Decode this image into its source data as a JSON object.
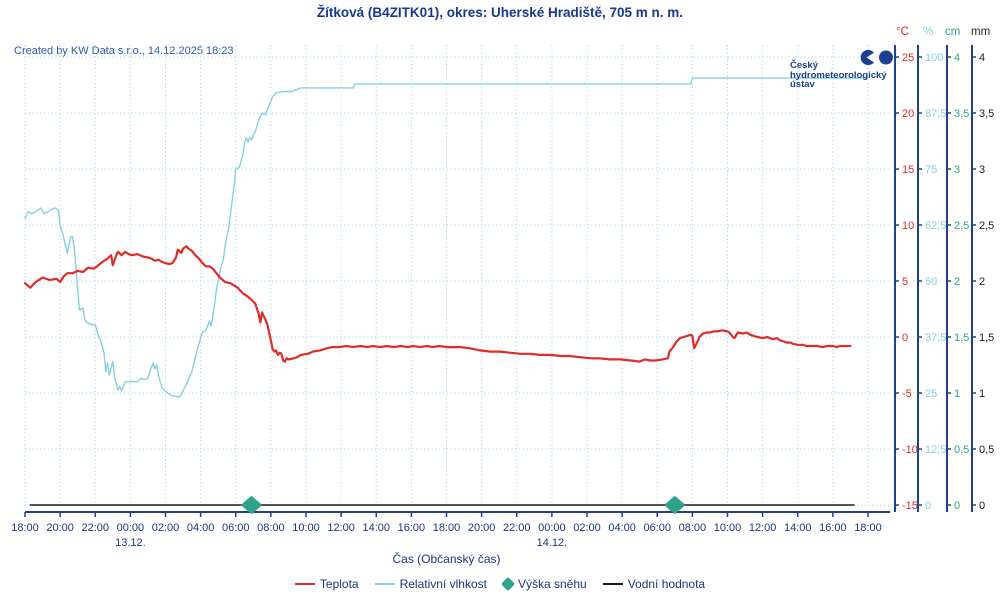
{
  "header": {
    "title": "Žítková (B4ZITK01), okres: Uherské Hradiště, 705 m n. m.",
    "created_by": "Created by KW Data s.r.o., 14.12.2025 18:23"
  },
  "logo": {
    "line1": "Český",
    "line2": "hydrometeorologický",
    "line3": "ústav"
  },
  "colors": {
    "text_navy": "#17387e",
    "axis_line": "#1d4289",
    "grid": "#9ed9ea",
    "created_by": "#2e5ba8"
  },
  "chart_data": {
    "type": "line",
    "title": "Žítková (B4ZITK01), okres: Uherské Hradiště, 705 m n. m.",
    "grid": true,
    "legend_position": "bottom",
    "x_axis": {
      "label": "Čas (Občanský čas)",
      "unit": "hours from 12.12. 18:00",
      "range_hours": [
        0,
        48
      ],
      "tick_interval_hours": 2,
      "tick_labels": [
        "18:00",
        "20:00",
        "22:00",
        "00:00",
        "02:00",
        "04:00",
        "06:00",
        "08:00",
        "10:00",
        "12:00",
        "14:00",
        "16:00",
        "18:00",
        "20:00",
        "22:00",
        "00:00",
        "02:00",
        "04:00",
        "06:00",
        "08:00",
        "10:00",
        "12:00",
        "14:00",
        "16:00",
        "18:00"
      ],
      "date_labels": [
        {
          "label": "13.12.",
          "hour": 6
        },
        {
          "label": "14.12.",
          "hour": 30
        }
      ]
    },
    "y_axes": [
      {
        "unit": "°C",
        "color": "#e02b28",
        "min": -15,
        "max": 25,
        "ticks": [
          "25",
          "20",
          "15",
          "10",
          "5",
          "0",
          "-5",
          "-10",
          "-15"
        ]
      },
      {
        "unit": "%",
        "color": "#87cfe0",
        "min": 0,
        "max": 100,
        "ticks": [
          "100",
          "87,5",
          "75",
          "62,5",
          "50",
          "37,5",
          "25",
          "12,5",
          "0"
        ]
      },
      {
        "unit": "cm",
        "color": "#30a28c",
        "min": 0,
        "max": 4,
        "ticks": [
          "4",
          "3,5",
          "3",
          "2,5",
          "2",
          "1,5",
          "1",
          "0,5",
          "0"
        ]
      },
      {
        "unit": "mm",
        "color": "#1c1c1c",
        "min": 0,
        "max": 4,
        "ticks": [
          "4",
          "3,5",
          "3",
          "2,5",
          "2",
          "1,5",
          "1",
          "0,5",
          "0"
        ]
      }
    ],
    "series": [
      {
        "name": "Teplota",
        "render": "line",
        "axis": 0,
        "color": "#e02b28",
        "width": 2.2,
        "points": [
          [
            0,
            4.8
          ],
          [
            0.3,
            4.4
          ],
          [
            0.6,
            4.9
          ],
          [
            1,
            5.3
          ],
          [
            1.4,
            5.1
          ],
          [
            1.8,
            5.2
          ],
          [
            2,
            4.9
          ],
          [
            2.2,
            5.4
          ],
          [
            2.4,
            5.7
          ],
          [
            2.7,
            5.7
          ],
          [
            3,
            5.9
          ],
          [
            3.3,
            5.8
          ],
          [
            3.6,
            6.2
          ],
          [
            3.9,
            6.1
          ],
          [
            4.1,
            6.3
          ],
          [
            4.4,
            6.7
          ],
          [
            4.7,
            7
          ],
          [
            4.9,
            7.3
          ],
          [
            5,
            6.4
          ],
          [
            5.2,
            7.3
          ],
          [
            5.3,
            7.6
          ],
          [
            5.5,
            7.3
          ],
          [
            5.7,
            7.6
          ],
          [
            5.9,
            7.4
          ],
          [
            6.1,
            7.3
          ],
          [
            6.4,
            7.4
          ],
          [
            6.7,
            7.2
          ],
          [
            7,
            7.1
          ],
          [
            7.2,
            7
          ],
          [
            7.4,
            6.8
          ],
          [
            7.6,
            6.9
          ],
          [
            7.8,
            6.7
          ],
          [
            8,
            6.6
          ],
          [
            8.2,
            6.5
          ],
          [
            8.4,
            6.6
          ],
          [
            8.6,
            7.1
          ],
          [
            8.7,
            7.8
          ],
          [
            8.9,
            7.5
          ],
          [
            9,
            7.9
          ],
          [
            9.2,
            8.1
          ],
          [
            9.3,
            7.9
          ],
          [
            9.5,
            7.7
          ],
          [
            9.7,
            7.3
          ],
          [
            9.9,
            7
          ],
          [
            10.1,
            6.6
          ],
          [
            10.3,
            6.3
          ],
          [
            10.5,
            6.3
          ],
          [
            10.7,
            6.1
          ],
          [
            10.9,
            5.7
          ],
          [
            11.1,
            5.3
          ],
          [
            11.4,
            4.9
          ],
          [
            11.7,
            4.8
          ],
          [
            12.1,
            4.4
          ],
          [
            12.4,
            3.9
          ],
          [
            12.7,
            3.6
          ],
          [
            12.9,
            3.3
          ],
          [
            13.1,
            3
          ],
          [
            13.3,
            2.1
          ],
          [
            13.4,
            1.3
          ],
          [
            13.5,
            2.2
          ],
          [
            13.7,
            1.5
          ],
          [
            13.8,
            1.1
          ],
          [
            13.9,
            0.4
          ],
          [
            14,
            -0.3
          ],
          [
            14.1,
            -1.1
          ],
          [
            14.2,
            -1.3
          ],
          [
            14.3,
            -1.2
          ],
          [
            14.4,
            -1.6
          ],
          [
            14.5,
            -1.4
          ],
          [
            14.6,
            -1.5
          ],
          [
            14.7,
            -2.1
          ],
          [
            14.8,
            -2.2
          ],
          [
            14.9,
            -1.9
          ],
          [
            15,
            -2
          ],
          [
            15.3,
            -1.9
          ],
          [
            15.5,
            -1.8
          ],
          [
            15.7,
            -1.6
          ],
          [
            16.1,
            -1.5
          ],
          [
            16.4,
            -1.3
          ],
          [
            16.8,
            -1.2
          ],
          [
            17.2,
            -1
          ],
          [
            17.5,
            -0.9
          ],
          [
            17.9,
            -0.9
          ],
          [
            18.3,
            -0.8
          ],
          [
            18.7,
            -0.9
          ],
          [
            19.1,
            -0.8
          ],
          [
            19.5,
            -0.9
          ],
          [
            19.8,
            -0.8
          ],
          [
            20.2,
            -0.9
          ],
          [
            20.6,
            -0.8
          ],
          [
            21,
            -0.9
          ],
          [
            21.4,
            -0.8
          ],
          [
            21.8,
            -0.9
          ],
          [
            22.1,
            -0.8
          ],
          [
            22.5,
            -0.9
          ],
          [
            22.9,
            -0.8
          ],
          [
            23.2,
            -0.9
          ],
          [
            23.6,
            -0.8
          ],
          [
            24,
            -0.9
          ],
          [
            24.8,
            -0.9
          ],
          [
            25.3,
            -1
          ],
          [
            25.9,
            -1.2
          ],
          [
            26.5,
            -1.3
          ],
          [
            27.1,
            -1.3
          ],
          [
            27.6,
            -1.4
          ],
          [
            28.2,
            -1.5
          ],
          [
            28.8,
            -1.5
          ],
          [
            29.3,
            -1.6
          ],
          [
            29.9,
            -1.6
          ],
          [
            30.5,
            -1.7
          ],
          [
            31,
            -1.7
          ],
          [
            31.6,
            -1.8
          ],
          [
            32.2,
            -1.9
          ],
          [
            32.7,
            -1.9
          ],
          [
            33.3,
            -2
          ],
          [
            33.9,
            -2
          ],
          [
            34.5,
            -2.1
          ],
          [
            35,
            -2.2
          ],
          [
            35.3,
            -2
          ],
          [
            35.6,
            -2.1
          ],
          [
            35.9,
            -2.1
          ],
          [
            36.3,
            -2
          ],
          [
            36.6,
            -1.9
          ],
          [
            36.7,
            -1.3
          ],
          [
            36.9,
            -0.9
          ],
          [
            37.1,
            -0.4
          ],
          [
            37.3,
            -0.1
          ],
          [
            37.5,
            0
          ],
          [
            37.7,
            0.1
          ],
          [
            37.9,
            0.2
          ],
          [
            38,
            0.1
          ],
          [
            38.1,
            -1
          ],
          [
            38.3,
            -0.4
          ],
          [
            38.4,
            0
          ],
          [
            38.6,
            0.3
          ],
          [
            38.8,
            0.4
          ],
          [
            39,
            0.4
          ],
          [
            39.2,
            0.5
          ],
          [
            39.4,
            0.5
          ],
          [
            39.7,
            0.6
          ],
          [
            40,
            0.5
          ],
          [
            40.1,
            0.4
          ],
          [
            40.3,
            0
          ],
          [
            40.4,
            -0.1
          ],
          [
            40.5,
            0.2
          ],
          [
            40.6,
            0.4
          ],
          [
            40.9,
            0.3
          ],
          [
            41.1,
            0.4
          ],
          [
            41.3,
            0.2
          ],
          [
            41.5,
            0.1
          ],
          [
            41.7,
            0
          ],
          [
            42,
            -0.1
          ],
          [
            42.3,
            0
          ],
          [
            42.4,
            -0.1
          ],
          [
            42.6,
            -0.2
          ],
          [
            42.8,
            -0.1
          ],
          [
            43,
            -0.3
          ],
          [
            43.2,
            -0.4
          ],
          [
            43.4,
            -0.5
          ],
          [
            43.6,
            -0.5
          ],
          [
            43.7,
            -0.6
          ],
          [
            44,
            -0.7
          ],
          [
            44.3,
            -0.7
          ],
          [
            44.5,
            -0.8
          ],
          [
            44.7,
            -0.8
          ],
          [
            45.1,
            -0.8
          ],
          [
            45.4,
            -0.9
          ],
          [
            45.7,
            -0.8
          ],
          [
            46,
            -0.8
          ],
          [
            46.2,
            -0.9
          ],
          [
            46.4,
            -0.8
          ],
          [
            46.7,
            -0.8
          ],
          [
            47,
            -0.8
          ]
        ]
      },
      {
        "name": "Relativní vlhkost",
        "render": "line",
        "axis": 1,
        "color": "#87cfe0",
        "width": 1.4,
        "points": [
          [
            0,
            64
          ],
          [
            0.2,
            65.5
          ],
          [
            0.4,
            65
          ],
          [
            0.6,
            65.4
          ],
          [
            0.9,
            66.3
          ],
          [
            1.1,
            65
          ],
          [
            1.3,
            65.4
          ],
          [
            1.5,
            66
          ],
          [
            1.7,
            66.3
          ],
          [
            1.9,
            65.8
          ],
          [
            2,
            62.5
          ],
          [
            2.2,
            59.8
          ],
          [
            2.4,
            56.2
          ],
          [
            2.6,
            59.8
          ],
          [
            2.7,
            60
          ],
          [
            2.8,
            57.5
          ],
          [
            2.9,
            53.5
          ],
          [
            3,
            48
          ],
          [
            3.1,
            43.5
          ],
          [
            3.3,
            44
          ],
          [
            3.4,
            41.5
          ],
          [
            3.5,
            40.8
          ],
          [
            3.7,
            40.4
          ],
          [
            4,
            40.2
          ],
          [
            4.2,
            37.5
          ],
          [
            4.3,
            36.8
          ],
          [
            4.5,
            34
          ],
          [
            4.6,
            29.7
          ],
          [
            4.7,
            31.7
          ],
          [
            4.8,
            29
          ],
          [
            4.9,
            30.6
          ],
          [
            5,
            32
          ],
          [
            5.1,
            28.3
          ],
          [
            5.3,
            25.7
          ],
          [
            5.4,
            26.5
          ],
          [
            5.5,
            25.5
          ],
          [
            5.7,
            27.5
          ],
          [
            5.9,
            27.5
          ],
          [
            6.2,
            27.6
          ],
          [
            6.4,
            27.4
          ],
          [
            6.6,
            28.3
          ],
          [
            6.8,
            28
          ],
          [
            7,
            28.3
          ],
          [
            7.1,
            29.7
          ],
          [
            7.3,
            31.7
          ],
          [
            7.4,
            30.4
          ],
          [
            7.5,
            31.3
          ],
          [
            7.6,
            28.8
          ],
          [
            7.8,
            26.3
          ],
          [
            7.9,
            25.7
          ],
          [
            8.1,
            25
          ],
          [
            8.4,
            24.4
          ],
          [
            8.8,
            24.1
          ],
          [
            9,
            25.5
          ],
          [
            9.2,
            27
          ],
          [
            9.5,
            29.7
          ],
          [
            9.7,
            33
          ],
          [
            9.9,
            36
          ],
          [
            10.1,
            38.5
          ],
          [
            10.3,
            39
          ],
          [
            10.5,
            41
          ],
          [
            10.6,
            40
          ],
          [
            10.8,
            45
          ],
          [
            10.9,
            48
          ],
          [
            11.1,
            52
          ],
          [
            11.3,
            55
          ],
          [
            11.4,
            58
          ],
          [
            11.6,
            62
          ],
          [
            11.7,
            65
          ],
          [
            11.8,
            68
          ],
          [
            11.9,
            71
          ],
          [
            12,
            75
          ],
          [
            12.2,
            75.4
          ],
          [
            12.4,
            78
          ],
          [
            12.5,
            80.8
          ],
          [
            12.6,
            82
          ],
          [
            12.7,
            81
          ],
          [
            12.8,
            82
          ],
          [
            12.9,
            81.5
          ],
          [
            13,
            82.5
          ],
          [
            13.1,
            83.3
          ],
          [
            13.2,
            84.5
          ],
          [
            13.3,
            85.9
          ],
          [
            13.5,
            87.5
          ],
          [
            13.6,
            87.3
          ],
          [
            13.7,
            87.1
          ],
          [
            13.8,
            88.3
          ],
          [
            14.1,
            91.1
          ],
          [
            14.3,
            92
          ],
          [
            14.7,
            92.3
          ],
          [
            15.2,
            92.3
          ],
          [
            15.7,
            93.1
          ],
          [
            18.7,
            93.1
          ],
          [
            18.8,
            94
          ],
          [
            37.9,
            94
          ],
          [
            38,
            95.3
          ],
          [
            48,
            95.3
          ]
        ]
      },
      {
        "name": "Výška sněhu",
        "render": "diamond",
        "axis": 2,
        "color": "#30a28c",
        "points": [
          [
            12.9,
            0
          ],
          [
            37,
            0
          ]
        ]
      },
      {
        "name": "Vodní hodnota",
        "render": "line",
        "axis": 3,
        "color": "#1c1c1c",
        "width": 1.6,
        "points": [
          [
            0.3,
            0
          ],
          [
            47.2,
            0
          ]
        ]
      }
    ]
  }
}
